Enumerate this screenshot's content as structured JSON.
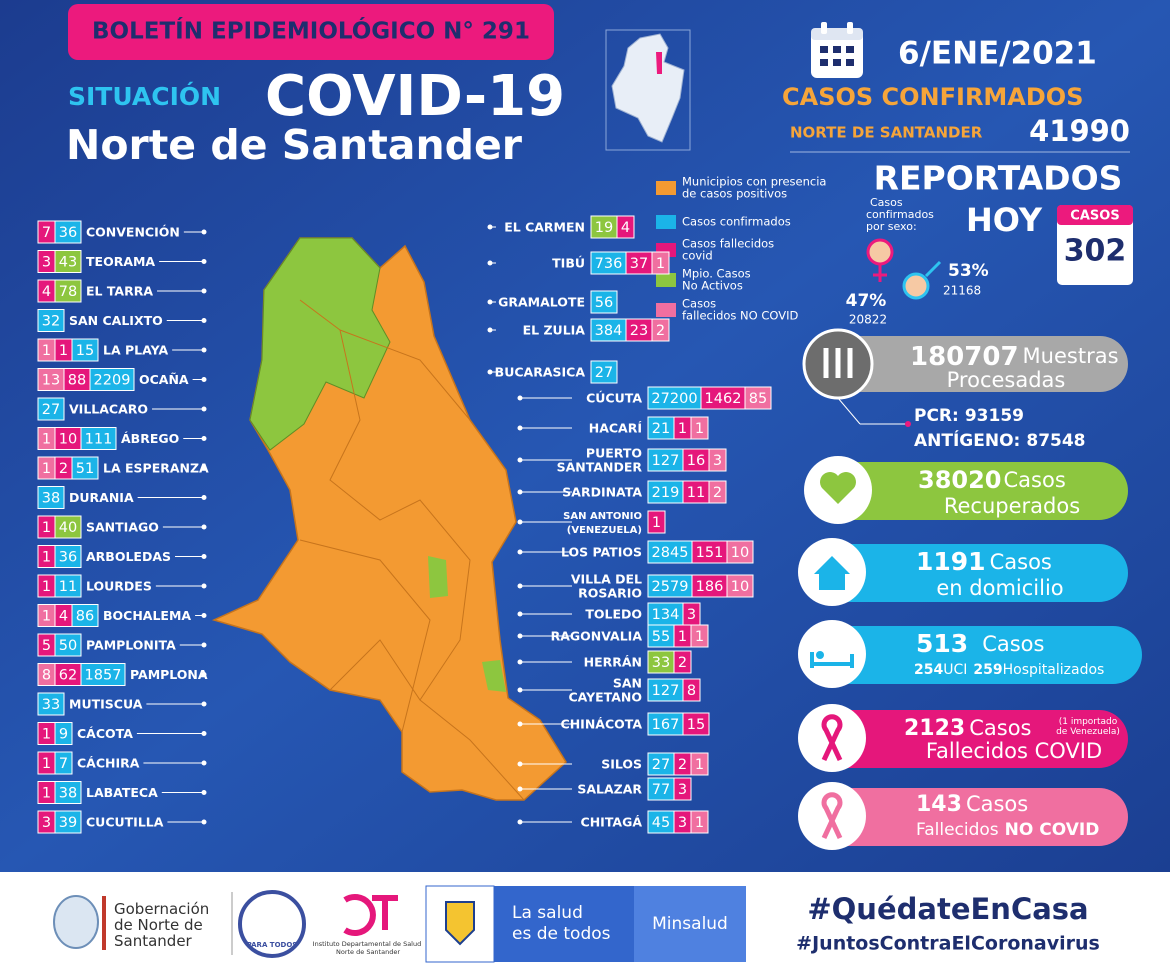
{
  "header": {
    "bulletin": "BOLETÍN EPIDEMIOLÓGICO N° 291",
    "situation": "SITUACIÓN",
    "title": "COVID-19",
    "subtitle": "Norte de Santander"
  },
  "summary": {
    "date": "6/ENE/2021",
    "confirmed_label": "CASOS CONFIRMADOS",
    "region": "NORTE DE SANTANDER",
    "confirmed": 41990,
    "reported": "REPORTADOS",
    "today": "HOY",
    "cases_label": "CASOS",
    "today_cases": 302,
    "sex_label": [
      "Casos",
      "confirmados",
      "por sexo:"
    ],
    "female_pct": "47%",
    "female": 20822,
    "male_pct": "53%",
    "male": 21168
  },
  "legend": [
    {
      "label": [
        "Municipios con presencia",
        "de casos positivos"
      ],
      "color": "#f39a32"
    },
    {
      "label": [
        "Casos confirmados"
      ],
      "color": "#1bb4e8"
    },
    {
      "label": [
        "Casos fallecidos",
        "covid"
      ],
      "color": "#e5177b"
    },
    {
      "label": [
        "Mpio. Casos",
        "No Activos"
      ],
      "color": "#8dc63f"
    },
    {
      "label": [
        "Casos",
        "fallecidos NO COVID"
      ],
      "color": "#f06fa0"
    }
  ],
  "left": [
    {
      "name": "CONVENCIÓN",
      "cells": [
        {
          "value": 7,
          "color": "#e5177b"
        },
        {
          "value": 36,
          "color": "#1bb4e8"
        }
      ]
    },
    {
      "name": "TEORAMA",
      "cells": [
        {
          "value": 3,
          "color": "#e5177b"
        },
        {
          "value": 43,
          "color": "#8dc63f"
        }
      ]
    },
    {
      "name": "EL TARRA",
      "cells": [
        {
          "value": 4,
          "color": "#e5177b"
        },
        {
          "value": 78,
          "color": "#8dc63f"
        }
      ]
    },
    {
      "name": "SAN CALIXTO",
      "cells": [
        {
          "value": 32,
          "color": "#1bb4e8"
        }
      ]
    },
    {
      "name": "LA PLAYA",
      "cells": [
        {
          "value": 1,
          "color": "#f06fa0"
        },
        {
          "value": 1,
          "color": "#e5177b"
        },
        {
          "value": 15,
          "color": "#1bb4e8"
        }
      ]
    },
    {
      "name": "OCAÑA",
      "cells": [
        {
          "value": 13,
          "color": "#f06fa0"
        },
        {
          "value": 88,
          "color": "#e5177b"
        },
        {
          "value": 2209,
          "color": "#1bb4e8"
        }
      ]
    },
    {
      "name": "VILLACARO",
      "cells": [
        {
          "value": 27,
          "color": "#1bb4e8"
        }
      ]
    },
    {
      "name": "ÁBREGO",
      "cells": [
        {
          "value": 1,
          "color": "#f06fa0"
        },
        {
          "value": 10,
          "color": "#e5177b"
        },
        {
          "value": 111,
          "color": "#1bb4e8"
        }
      ]
    },
    {
      "name": "LA ESPERANZA",
      "cells": [
        {
          "value": 1,
          "color": "#f06fa0"
        },
        {
          "value": 2,
          "color": "#e5177b"
        },
        {
          "value": 51,
          "color": "#1bb4e8"
        }
      ]
    },
    {
      "name": "DURANIA",
      "cells": [
        {
          "value": 38,
          "color": "#1bb4e8"
        }
      ]
    },
    {
      "name": "SANTIAGO",
      "cells": [
        {
          "value": 1,
          "color": "#e5177b"
        },
        {
          "value": 40,
          "color": "#8dc63f"
        }
      ]
    },
    {
      "name": "ARBOLEDAS",
      "cells": [
        {
          "value": 1,
          "color": "#e5177b"
        },
        {
          "value": 36,
          "color": "#1bb4e8"
        }
      ]
    },
    {
      "name": "LOURDES",
      "cells": [
        {
          "value": 1,
          "color": "#e5177b"
        },
        {
          "value": 11,
          "color": "#1bb4e8"
        }
      ]
    },
    {
      "name": "BOCHALEMA",
      "cells": [
        {
          "value": 1,
          "color": "#f06fa0"
        },
        {
          "value": 4,
          "color": "#e5177b"
        },
        {
          "value": 86,
          "color": "#1bb4e8"
        }
      ]
    },
    {
      "name": "PAMPLONITA",
      "cells": [
        {
          "value": 5,
          "color": "#e5177b"
        },
        {
          "value": 50,
          "color": "#1bb4e8"
        }
      ]
    },
    {
      "name": "PAMPLONA",
      "cells": [
        {
          "value": 8,
          "color": "#f06fa0"
        },
        {
          "value": 62,
          "color": "#e5177b"
        },
        {
          "value": 1857,
          "color": "#1bb4e8"
        }
      ]
    },
    {
      "name": "MUTISCUA",
      "cells": [
        {
          "value": 33,
          "color": "#1bb4e8"
        }
      ]
    },
    {
      "name": "CÁCOTA",
      "cells": [
        {
          "value": 1,
          "color": "#e5177b"
        },
        {
          "value": 9,
          "color": "#1bb4e8"
        }
      ]
    },
    {
      "name": "CÁCHIRA",
      "cells": [
        {
          "value": 1,
          "color": "#e5177b"
        },
        {
          "value": 7,
          "color": "#1bb4e8"
        }
      ]
    },
    {
      "name": "LABATECA",
      "cells": [
        {
          "value": 1,
          "color": "#e5177b"
        },
        {
          "value": 38,
          "color": "#1bb4e8"
        }
      ]
    },
    {
      "name": "CUCUTILLA",
      "cells": [
        {
          "value": 3,
          "color": "#e5177b"
        },
        {
          "value": 39,
          "color": "#1bb4e8"
        }
      ]
    }
  ],
  "right": [
    {
      "name": [
        "EL CARMEN"
      ],
      "cells": [
        {
          "value": 19,
          "color": "#8dc63f"
        },
        {
          "value": 4,
          "color": "#e5177b"
        }
      ]
    },
    {
      "name": [
        "TIBÚ"
      ],
      "cells": [
        {
          "value": 736,
          "color": "#1bb4e8"
        },
        {
          "value": 37,
          "color": "#e5177b"
        },
        {
          "value": 1,
          "color": "#f06fa0"
        }
      ]
    },
    {
      "name": [
        "GRAMALOTE"
      ],
      "cells": [
        {
          "value": 56,
          "color": "#1bb4e8"
        }
      ]
    },
    {
      "name": [
        "EL ZULIA"
      ],
      "cells": [
        {
          "value": 384,
          "color": "#1bb4e8"
        },
        {
          "value": 23,
          "color": "#e5177b"
        },
        {
          "value": 2,
          "color": "#f06fa0"
        }
      ]
    },
    {
      "name": [
        "BUCARASICA"
      ],
      "cells": [
        {
          "value": 27,
          "color": "#1bb4e8"
        }
      ]
    },
    {
      "name": [
        "CÚCUTA"
      ],
      "cells": [
        {
          "value": 27200,
          "color": "#1bb4e8"
        },
        {
          "value": 1462,
          "color": "#e5177b"
        },
        {
          "value": 85,
          "color": "#f06fa0"
        }
      ]
    },
    {
      "name": [
        "HACARÍ"
      ],
      "cells": [
        {
          "value": 21,
          "color": "#1bb4e8"
        },
        {
          "value": 1,
          "color": "#e5177b"
        },
        {
          "value": 1,
          "color": "#f06fa0"
        }
      ]
    },
    {
      "name": [
        "PUERTO",
        "SANTANDER"
      ],
      "cells": [
        {
          "value": 127,
          "color": "#1bb4e8"
        },
        {
          "value": 16,
          "color": "#e5177b"
        },
        {
          "value": 3,
          "color": "#f06fa0"
        }
      ]
    },
    {
      "name": [
        "SARDINATA"
      ],
      "cells": [
        {
          "value": 219,
          "color": "#1bb4e8"
        },
        {
          "value": 11,
          "color": "#e5177b"
        },
        {
          "value": 2,
          "color": "#f06fa0"
        }
      ]
    },
    {
      "name": [
        "SAN ANTONIO",
        "(VENEZUELA)"
      ],
      "cells": [
        {
          "value": 1,
          "color": "#e5177b"
        }
      ]
    },
    {
      "name": [
        "LOS PATIOS"
      ],
      "cells": [
        {
          "value": 2845,
          "color": "#1bb4e8"
        },
        {
          "value": 151,
          "color": "#e5177b"
        },
        {
          "value": 10,
          "color": "#f06fa0"
        }
      ]
    },
    {
      "name": [
        "VILLA DEL",
        "ROSARIO"
      ],
      "cells": [
        {
          "value": 2579,
          "color": "#1bb4e8"
        },
        {
          "value": 186,
          "color": "#e5177b"
        },
        {
          "value": 10,
          "color": "#f06fa0"
        }
      ]
    },
    {
      "name": [
        "TOLEDO"
      ],
      "cells": [
        {
          "value": 134,
          "color": "#1bb4e8"
        },
        {
          "value": 3,
          "color": "#e5177b"
        }
      ]
    },
    {
      "name": [
        "RAGONVALIA"
      ],
      "cells": [
        {
          "value": 55,
          "color": "#1bb4e8"
        },
        {
          "value": 1,
          "color": "#e5177b"
        },
        {
          "value": 1,
          "color": "#f06fa0"
        }
      ]
    },
    {
      "name": [
        "HERRÁN"
      ],
      "cells": [
        {
          "value": 33,
          "color": "#8dc63f"
        },
        {
          "value": 2,
          "color": "#e5177b"
        }
      ]
    },
    {
      "name": [
        "SAN",
        "CAYETANO"
      ],
      "cells": [
        {
          "value": 127,
          "color": "#1bb4e8"
        },
        {
          "value": 8,
          "color": "#e5177b"
        }
      ]
    },
    {
      "name": [
        "CHINÁCOTA"
      ],
      "cells": [
        {
          "value": 167,
          "color": "#1bb4e8"
        },
        {
          "value": 15,
          "color": "#e5177b"
        }
      ]
    },
    {
      "name": [
        "SILOS"
      ],
      "cells": [
        {
          "value": 27,
          "color": "#1bb4e8"
        },
        {
          "value": 2,
          "color": "#e5177b"
        },
        {
          "value": 1,
          "color": "#f06fa0"
        }
      ]
    },
    {
      "name": [
        "SALAZAR"
      ],
      "cells": [
        {
          "value": 77,
          "color": "#1bb4e8"
        },
        {
          "value": 3,
          "color": "#e5177b"
        }
      ]
    },
    {
      "name": [
        "CHITAGÁ"
      ],
      "cells": [
        {
          "value": 45,
          "color": "#1bb4e8"
        },
        {
          "value": 3,
          "color": "#e5177b"
        },
        {
          "value": 1,
          "color": "#f06fa0"
        }
      ]
    }
  ],
  "panels": {
    "samples": {
      "value": 180707,
      "label": "Muestras",
      "label2": "Procesadas",
      "pcr_label": "PCR:",
      "pcr": 93159,
      "antigen_label": "ANTÍGENO:",
      "antigen": 87548
    },
    "recovered": {
      "value": 38020,
      "label": "Casos",
      "label2": "Recuperados"
    },
    "home": {
      "value": 1191,
      "label": "Casos",
      "label2": "en domicilio"
    },
    "hospital": {
      "value": 513,
      "label": "Casos",
      "icu": 254,
      "icu_label": "UCI",
      "hosp": 259,
      "hosp_label": "Hospitalizados"
    },
    "deaths": {
      "value": 2123,
      "label": "Casos",
      "note": [
        "(1 importado",
        "de Venezuela)"
      ],
      "label2": "Fallecidos COVID"
    },
    "non_covid": {
      "value": 143,
      "label": "Casos",
      "label2": "Fallecidos",
      "label3": "NO COVID"
    }
  },
  "footer": {
    "gov": [
      "Gobernación",
      "de Norte de",
      "Santander"
    ],
    "slogan_logo": "PARA TODOS",
    "ids": [
      "Instituto Departamental de Salud",
      "Norte de Santander"
    ],
    "health": [
      "La salud",
      "es de todos"
    ],
    "ministry": "Minsalud",
    "hashtag1": "#QuédateEnCasa",
    "hashtag2": "#JuntosContraElCoronavirus"
  }
}
